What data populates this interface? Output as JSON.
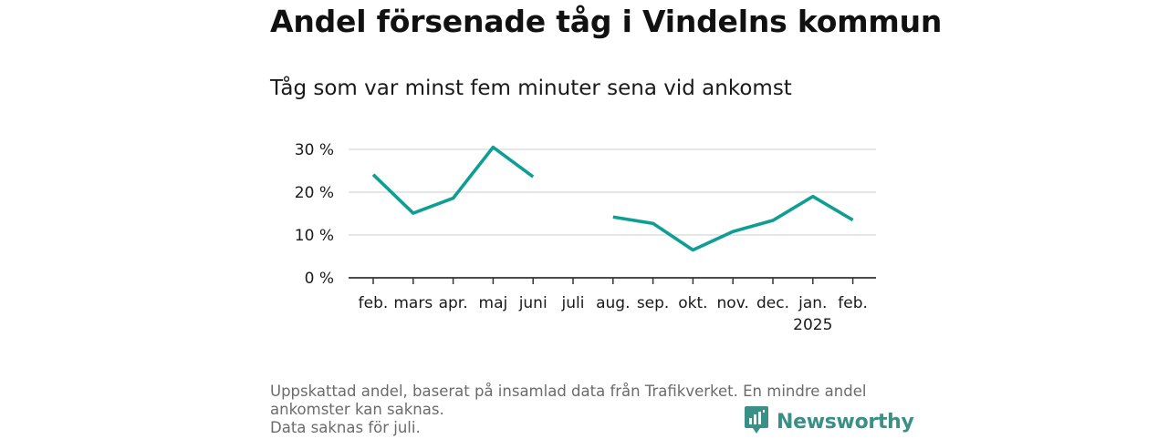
{
  "header": {
    "title": "Andel försenade tåg i Vindelns kommun",
    "subtitle": "Tåg som var minst fem minuter sena vid ankomst"
  },
  "chart_data": {
    "type": "line",
    "categories": [
      "feb.",
      "mars",
      "apr.",
      "maj",
      "juni",
      "juli",
      "aug.",
      "sep.",
      "okt.",
      "nov.",
      "dec.",
      "jan.",
      "feb."
    ],
    "year_label": "2025",
    "year_label_under": "jan.",
    "series": [
      {
        "values": [
          24.1,
          15.1,
          18.6,
          30.5,
          23.6,
          null,
          14.2,
          12.7,
          6.5,
          10.8,
          13.4,
          19.0,
          13.5
        ]
      }
    ],
    "ylim": [
      0,
      30
    ],
    "yticks": [
      0,
      10,
      20,
      30
    ],
    "ytick_labels": [
      "0 %",
      "10 %",
      "20 %",
      "30 %"
    ],
    "grid": true,
    "xlabel": "",
    "ylabel": "",
    "colors": {
      "line": "#0f9e94",
      "grid": "#dddddd",
      "axis": "#333333"
    }
  },
  "footnote": {
    "line1": "Uppskattad andel, baserat på insamlad data från Trafikverket. En mindre andel",
    "line2": "ankomster kan saknas.",
    "line3": "Data saknas för juli."
  },
  "brand": {
    "name": "Newsworthy",
    "icon": "newsworthy-logo-icon",
    "color": "#3a8f86"
  }
}
